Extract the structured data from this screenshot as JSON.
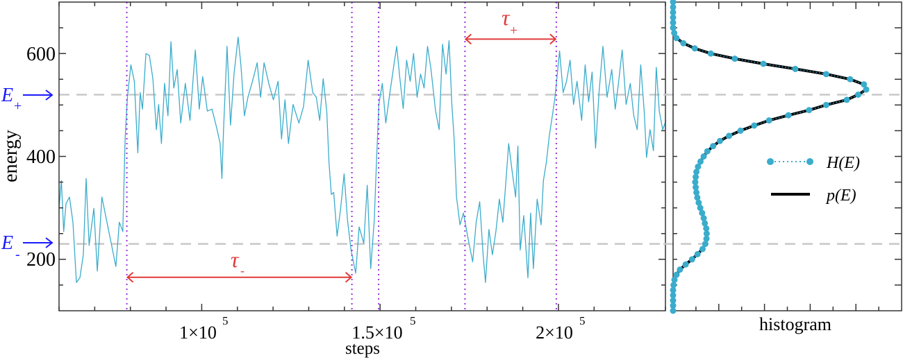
{
  "chart_data": [
    {
      "type": "line",
      "xlabel": "steps",
      "ylabel": "energy",
      "xlim": [
        60000,
        230000
      ],
      "ylim": [
        100,
        700
      ],
      "grid": false,
      "xticks": [
        {
          "value": 100000,
          "label": "1×10",
          "exp": "5"
        },
        {
          "value": 150000,
          "label": "1.5×10",
          "exp": "5"
        },
        {
          "value": 200000,
          "label": "2×10",
          "exp": "5"
        }
      ],
      "x_minor_step": 10000,
      "yticks": [
        {
          "value": 200,
          "label": "200"
        },
        {
          "value": 400,
          "label": "400"
        },
        {
          "value": 600,
          "label": "600"
        }
      ],
      "y_minor_step": 50,
      "colors": {
        "trace": "#3aaccc",
        "reference": "#c8c8c8",
        "markers": "#9b30e0",
        "interval": "#e03a3a",
        "levels": "#1a1aff"
      },
      "levels": [
        {
          "value": 520,
          "label": "E",
          "sub": "+"
        },
        {
          "value": 230,
          "label": "E",
          "sub": "-"
        }
      ],
      "transitions": [
        79000,
        142100,
        149600,
        173800,
        199400
      ],
      "intervals": [
        {
          "label": "τ",
          "sub": "-",
          "from": 79000,
          "to": 142100,
          "energy": 165
        },
        {
          "label": "τ",
          "sub": "+",
          "from": 173800,
          "to": 199400,
          "energy": 628
        }
      ],
      "series": [
        {
          "points": [
            [
              60000,
              299
            ],
            [
              60650,
              353
            ],
            [
              61300,
              254
            ],
            [
              61950,
              308
            ],
            [
              62920,
              321
            ],
            [
              63900,
              272
            ],
            [
              64870,
              155
            ],
            [
              65850,
              164
            ],
            [
              66820,
              209
            ],
            [
              67600,
              357
            ],
            [
              68440,
              227
            ],
            [
              69750,
              299
            ],
            [
              70720,
              177
            ],
            [
              72020,
              321
            ],
            [
              73310,
              276
            ],
            [
              74620,
              231
            ],
            [
              75920,
              186
            ],
            [
              76900,
              272
            ],
            [
              77870,
              254
            ],
            [
              78520,
              434
            ],
            [
              79160,
              515
            ],
            [
              80140,
              578
            ],
            [
              81110,
              546
            ],
            [
              82080,
              407
            ],
            [
              82740,
              524
            ],
            [
              83390,
              492
            ],
            [
              84360,
              600
            ],
            [
              85340,
              596
            ],
            [
              86310,
              551
            ],
            [
              87290,
              452
            ],
            [
              87930,
              501
            ],
            [
              88710,
              425
            ],
            [
              89570,
              542
            ],
            [
              90540,
              479
            ],
            [
              91380,
              623
            ],
            [
              92160,
              533
            ],
            [
              93130,
              569
            ],
            [
              94110,
              465
            ],
            [
              95410,
              542
            ],
            [
              96700,
              470
            ],
            [
              98200,
              607
            ],
            [
              99310,
              492
            ],
            [
              100280,
              555
            ],
            [
              101580,
              488
            ],
            [
              102880,
              492
            ],
            [
              104180,
              456
            ],
            [
              105160,
              425
            ],
            [
              105670,
              357
            ],
            [
              106120,
              452
            ],
            [
              107100,
              614
            ],
            [
              108070,
              461
            ],
            [
              109050,
              560
            ],
            [
              110210,
              632
            ],
            [
              110990,
              578
            ],
            [
              111970,
              479
            ],
            [
              112940,
              515
            ],
            [
              114240,
              546
            ],
            [
              115540,
              582
            ],
            [
              116520,
              515
            ],
            [
              117490,
              582
            ],
            [
              118790,
              542
            ],
            [
              120090,
              510
            ],
            [
              121390,
              546
            ],
            [
              122370,
              434
            ],
            [
              123340,
              510
            ],
            [
              124320,
              425
            ],
            [
              125610,
              501
            ],
            [
              127240,
              465
            ],
            [
              128540,
              497
            ],
            [
              129840,
              587
            ],
            [
              131140,
              524
            ],
            [
              132110,
              515
            ],
            [
              133090,
              470
            ],
            [
              134060,
              551
            ],
            [
              135040,
              488
            ],
            [
              135680,
              389
            ],
            [
              136330,
              326
            ],
            [
              136990,
              330
            ],
            [
              137960,
              245
            ],
            [
              138940,
              299
            ],
            [
              139910,
              366
            ],
            [
              140880,
              276
            ],
            [
              141860,
              218
            ],
            [
              143160,
              173
            ],
            [
              144130,
              263
            ],
            [
              145430,
              231
            ],
            [
              146410,
              344
            ],
            [
              147380,
              182
            ],
            [
              148360,
              276
            ],
            [
              149000,
              389
            ],
            [
              149660,
              501
            ],
            [
              150630,
              542
            ],
            [
              151610,
              465
            ],
            [
              152580,
              515
            ],
            [
              153880,
              578
            ],
            [
              154660,
              614
            ],
            [
              155500,
              555
            ],
            [
              156480,
              493
            ],
            [
              157450,
              587
            ],
            [
              158430,
              546
            ],
            [
              159400,
              600
            ],
            [
              160380,
              515
            ],
            [
              161350,
              560
            ],
            [
              162330,
              533
            ],
            [
              163300,
              614
            ],
            [
              164270,
              569
            ],
            [
              165570,
              488
            ],
            [
              166550,
              452
            ],
            [
              167520,
              618
            ],
            [
              168500,
              560
            ],
            [
              169340,
              625
            ],
            [
              170120,
              501
            ],
            [
              170770,
              434
            ],
            [
              171420,
              321
            ],
            [
              172400,
              267
            ],
            [
              173370,
              290
            ],
            [
              174670,
              240
            ],
            [
              175970,
              195
            ],
            [
              176940,
              272
            ],
            [
              177920,
              312
            ],
            [
              178890,
              209
            ],
            [
              179540,
              155
            ],
            [
              180520,
              258
            ],
            [
              181490,
              209
            ],
            [
              182470,
              254
            ],
            [
              183440,
              317
            ],
            [
              184420,
              272
            ],
            [
              185390,
              362
            ],
            [
              186040,
              425
            ],
            [
              187020,
              371
            ],
            [
              187990,
              321
            ],
            [
              188640,
              420
            ],
            [
              189290,
              218
            ],
            [
              190270,
              285
            ],
            [
              191440,
              164
            ],
            [
              192210,
              290
            ],
            [
              192990,
              182
            ],
            [
              194030,
              317
            ],
            [
              195140,
              267
            ],
            [
              195790,
              353
            ],
            [
              196630,
              389
            ],
            [
              197410,
              438
            ],
            [
              198380,
              483
            ],
            [
              199030,
              515
            ],
            [
              199680,
              560
            ],
            [
              200330,
              605
            ],
            [
              201310,
              524
            ],
            [
              202280,
              546
            ],
            [
              203260,
              587
            ],
            [
              204230,
              501
            ],
            [
              205210,
              546
            ],
            [
              206510,
              470
            ],
            [
              207480,
              578
            ],
            [
              208460,
              506
            ],
            [
              209430,
              564
            ],
            [
              210410,
              416
            ],
            [
              211380,
              524
            ],
            [
              212480,
              614
            ],
            [
              213650,
              515
            ],
            [
              214950,
              569
            ],
            [
              215920,
              492
            ],
            [
              216900,
              546
            ],
            [
              217870,
              607
            ],
            [
              218980,
              501
            ],
            [
              220150,
              542
            ],
            [
              221120,
              479
            ],
            [
              222100,
              452
            ],
            [
              223070,
              578
            ],
            [
              224050,
              488
            ],
            [
              224700,
              398
            ],
            [
              225670,
              452
            ],
            [
              226640,
              411
            ],
            [
              227420,
              573
            ],
            [
              228260,
              488
            ],
            [
              229240,
              452
            ],
            [
              230150,
              470
            ]
          ]
        }
      ]
    },
    {
      "type": "line",
      "xlabel": "histogram",
      "ylabel": "",
      "xlim": [
        0,
        10
      ],
      "ylim": [
        100,
        700
      ],
      "x_minor_step": 1,
      "legend_position": "center-right",
      "energies": [
        700,
        690,
        680,
        670,
        660,
        650,
        640,
        630,
        620,
        610,
        600,
        590,
        580,
        570,
        560,
        550,
        540,
        530,
        520,
        510,
        500,
        490,
        480,
        470,
        460,
        450,
        440,
        430,
        420,
        410,
        400,
        390,
        380,
        370,
        360,
        350,
        340,
        330,
        320,
        310,
        300,
        290,
        280,
        270,
        260,
        250,
        240,
        230,
        220,
        210,
        200,
        190,
        180,
        170,
        160,
        150,
        140,
        130,
        120,
        110,
        100
      ],
      "series": [
        {
          "name": "H(E)",
          "marker": "circle",
          "line": "dotted",
          "color": "#3aaccc",
          "values": [
            0,
            0,
            0,
            0,
            0,
            0,
            0.05,
            0.15,
            0.45,
            0.95,
            1.65,
            2.7,
            3.95,
            5.35,
            6.7,
            7.75,
            8.35,
            8.45,
            8.1,
            7.6,
            6.7,
            5.95,
            5.05,
            4.2,
            3.55,
            2.95,
            2.45,
            2.05,
            1.75,
            1.5,
            1.34,
            1.2,
            1.09,
            1.02,
            0.99,
            0.97,
            0.99,
            1.02,
            1.06,
            1.12,
            1.19,
            1.27,
            1.34,
            1.39,
            1.45,
            1.47,
            1.46,
            1.41,
            1.29,
            1.07,
            0.83,
            0.55,
            0.3,
            0.15,
            0.06,
            0.02,
            0,
            0,
            0,
            0,
            0
          ]
        },
        {
          "name": "p(E)",
          "line": "solid",
          "color": "#000000",
          "values": [
            0,
            0,
            0,
            0,
            0,
            0,
            0.05,
            0.15,
            0.45,
            0.95,
            1.65,
            2.7,
            3.95,
            5.35,
            6.7,
            7.75,
            8.35,
            8.45,
            8.1,
            7.6,
            6.7,
            5.95,
            5.05,
            4.2,
            3.55,
            2.95,
            2.45,
            2.05,
            1.75,
            1.5,
            1.34,
            1.2,
            1.09,
            1.02,
            0.99,
            0.97,
            0.99,
            1.02,
            1.06,
            1.12,
            1.19,
            1.27,
            1.34,
            1.39,
            1.45,
            1.47,
            1.46,
            1.41,
            1.29,
            1.07,
            0.83,
            0.55,
            0.3,
            0.15,
            0.06,
            0.02,
            0,
            0,
            0,
            0,
            0
          ]
        }
      ]
    }
  ]
}
